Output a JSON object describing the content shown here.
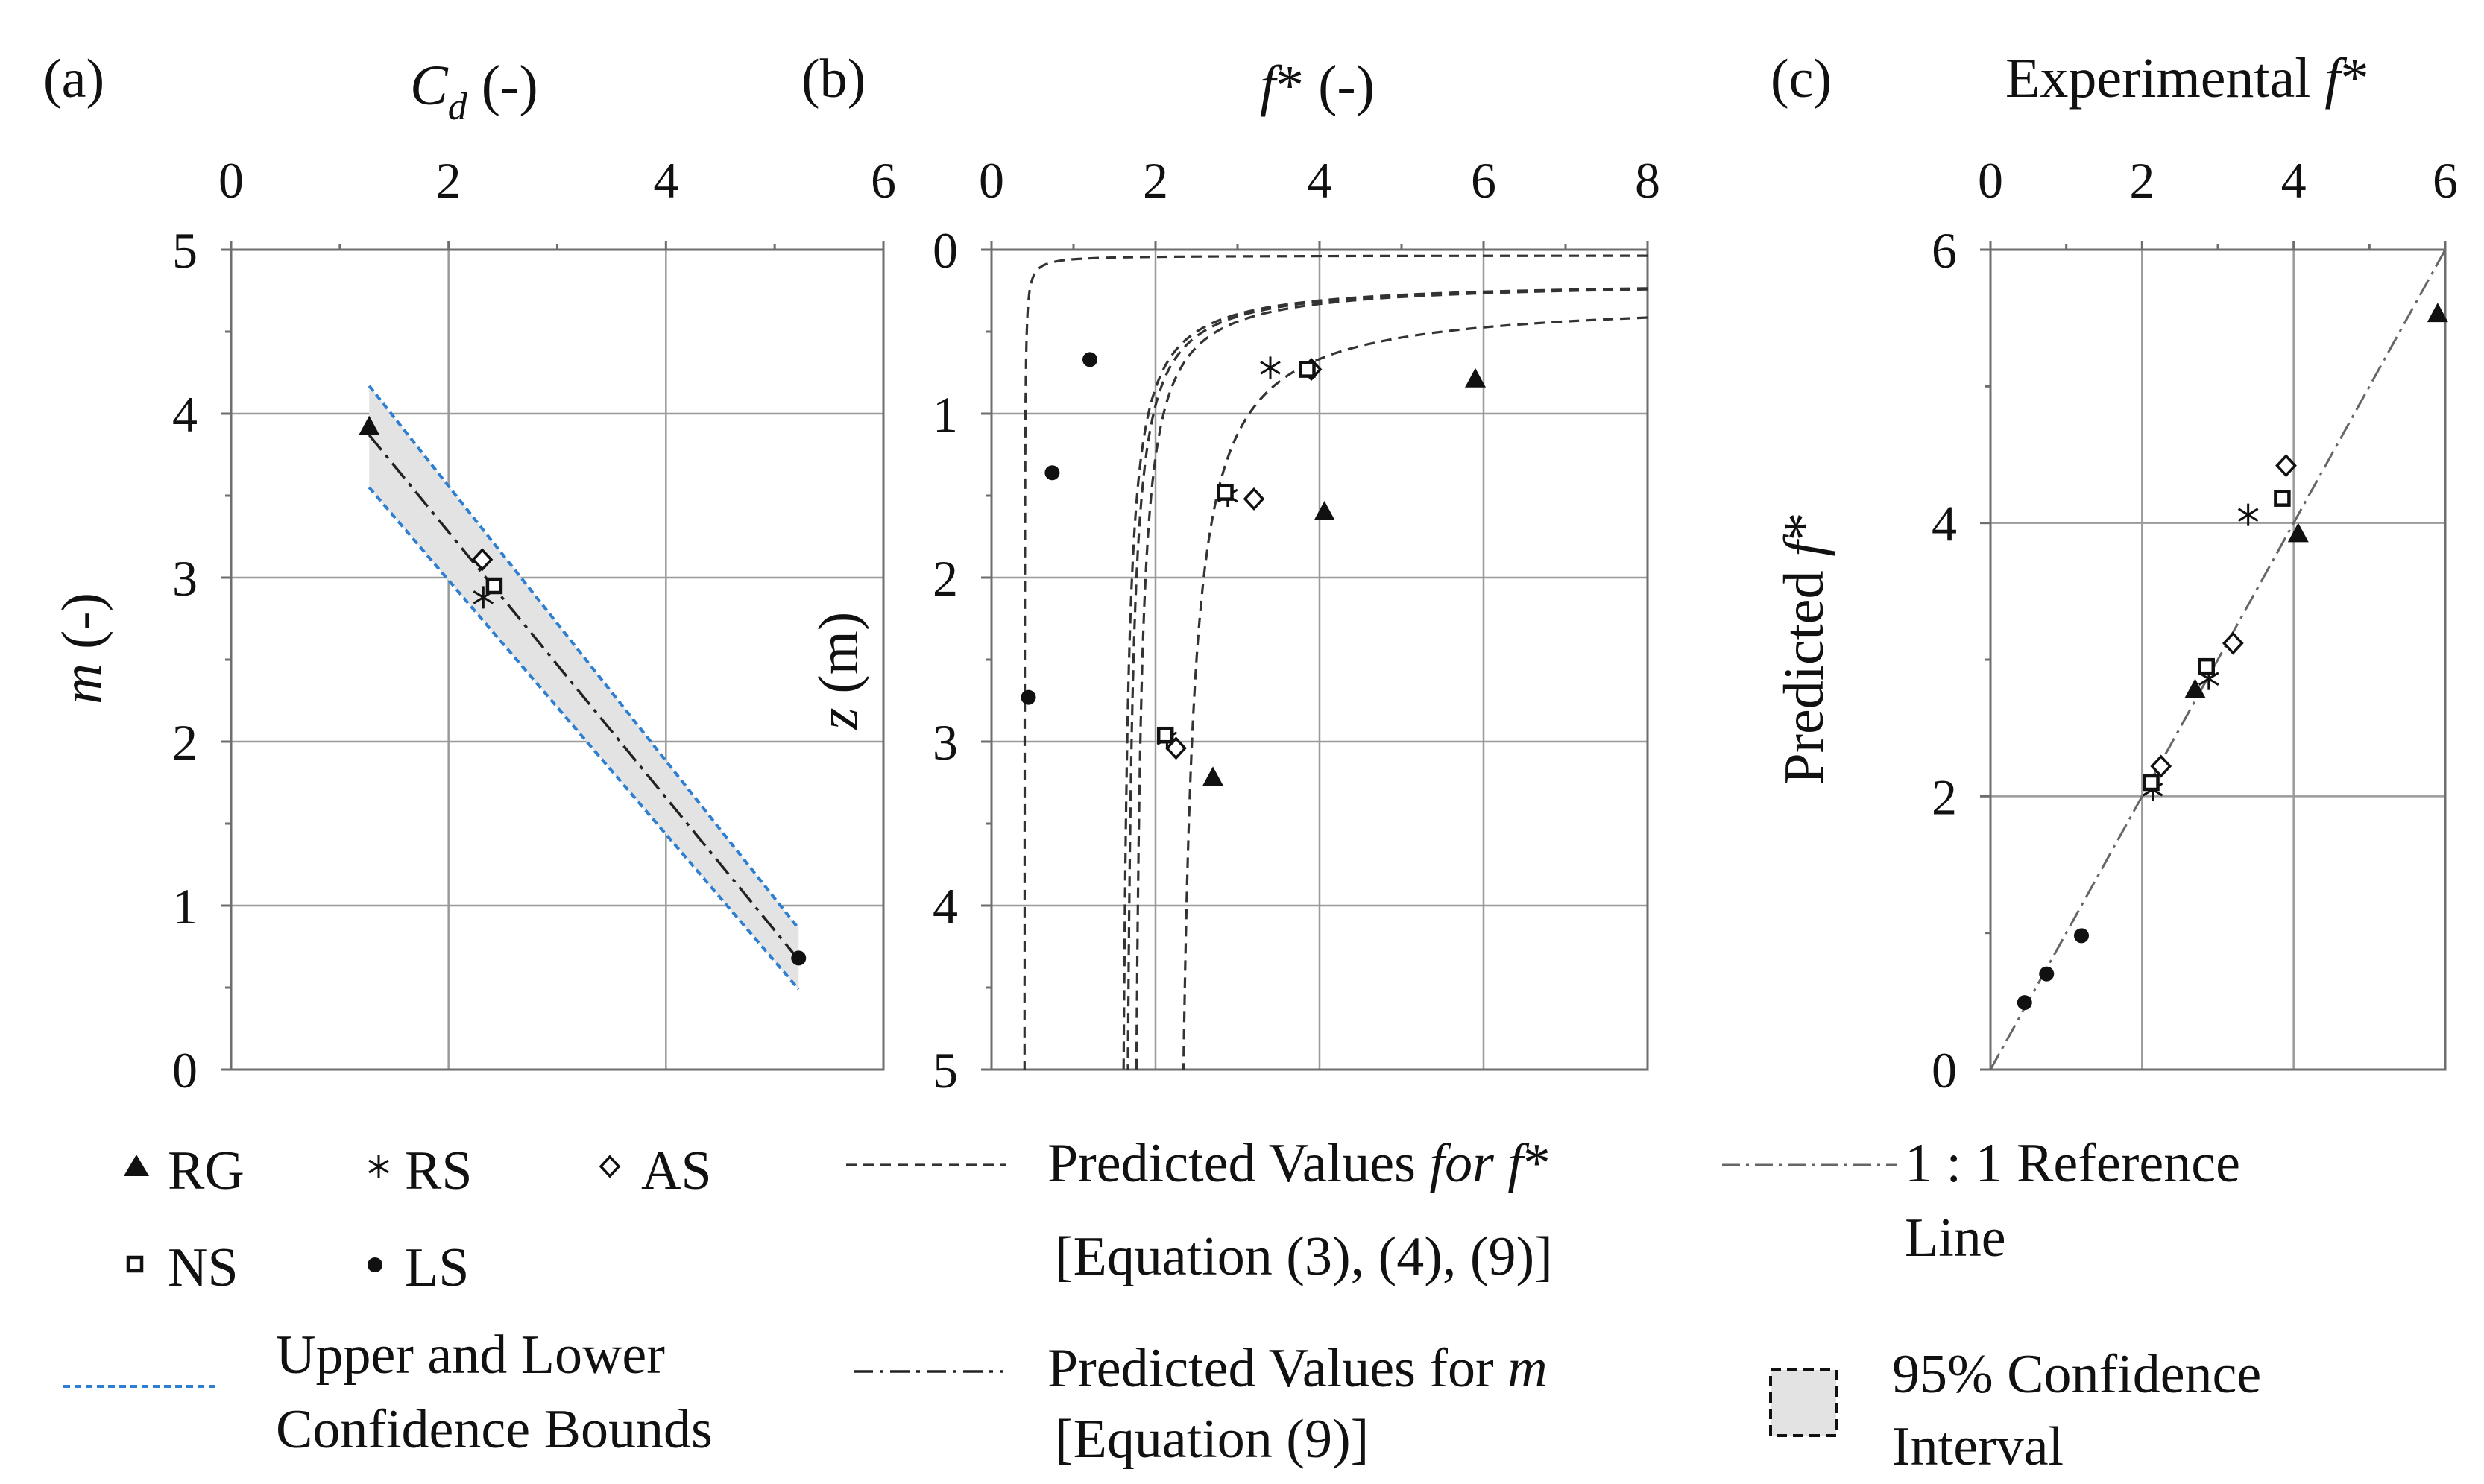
{
  "chart_data": [
    {
      "panel": "(a)",
      "type": "scatter",
      "xlabel": "C_d (-)",
      "ylabel": "m (-)",
      "xlim": [
        0,
        6
      ],
      "ylim": [
        0,
        5
      ],
      "xticks": [
        "0",
        "2",
        "4",
        "6"
      ],
      "yticks": [
        "0",
        "1",
        "2",
        "3",
        "4",
        "5"
      ],
      "axis_position": "x-axis on top",
      "grid": true,
      "series": [
        {
          "name": "RG",
          "marker": "triangle",
          "points": [
            [
              1.27,
              3.92
            ]
          ]
        },
        {
          "name": "RS",
          "marker": "asterisk",
          "points": [
            [
              2.32,
              2.88
            ]
          ]
        },
        {
          "name": "AS",
          "marker": "diamond",
          "points": [
            [
              2.31,
              3.11
            ]
          ]
        },
        {
          "name": "NS",
          "marker": "square",
          "points": [
            [
              2.42,
              2.95
            ]
          ]
        },
        {
          "name": "LS",
          "marker": "dot",
          "points": [
            [
              5.22,
              0.68
            ]
          ]
        }
      ],
      "fit_line": [
        [
          1.27,
          3.87
        ],
        [
          5.22,
          0.67
        ]
      ],
      "confidence_bounds": {
        "upper": [
          [
            1.27,
            4.17
          ],
          [
            5.22,
            0.86
          ]
        ],
        "lower": [
          [
            1.27,
            3.55
          ],
          [
            5.22,
            0.49
          ]
        ]
      }
    },
    {
      "panel": "(b)",
      "type": "scatter",
      "xlabel": "f* (-)",
      "ylabel": "z (m)",
      "xlim": [
        0,
        8
      ],
      "ylim": [
        0,
        5
      ],
      "y_inverted": true,
      "xticks": [
        "0",
        "2",
        "4",
        "6",
        "8"
      ],
      "yticks": [
        "0",
        "1",
        "2",
        "3",
        "4",
        "5"
      ],
      "axis_position": "x-axis on top",
      "grid": true,
      "series": [
        {
          "name": "RG",
          "marker": "triangle",
          "points": [
            [
              5.9,
              0.79
            ],
            [
              4.06,
              1.6
            ],
            [
              2.7,
              3.22
            ]
          ]
        },
        {
          "name": "RS",
          "marker": "asterisk",
          "points": [
            [
              3.4,
              0.72
            ],
            [
              2.88,
              1.5
            ],
            [
              2.14,
              2.98
            ]
          ]
        },
        {
          "name": "AS",
          "marker": "diamond",
          "points": [
            [
              3.9,
              0.73
            ],
            [
              3.2,
              1.52
            ],
            [
              2.25,
              3.04
            ]
          ]
        },
        {
          "name": "NS",
          "marker": "square",
          "points": [
            [
              3.85,
              0.73
            ],
            [
              2.85,
              1.48
            ],
            [
              2.12,
              2.96
            ]
          ]
        },
        {
          "name": "LS",
          "marker": "dot",
          "points": [
            [
              1.2,
              0.67
            ],
            [
              0.74,
              1.36
            ],
            [
              0.45,
              2.73
            ]
          ]
        }
      ],
      "predicted_curves": [
        {
          "group": "LS",
          "a": 0.4,
          "b": 0.035
        },
        {
          "group": "RS",
          "a": 1.55,
          "b": 0.19
        },
        {
          "group": "NS",
          "a": 1.6,
          "b": 0.19
        },
        {
          "group": "AS",
          "a": 1.7,
          "b": 0.19
        },
        {
          "group": "RG",
          "a": 2.2,
          "b": 0.3
        }
      ]
    },
    {
      "panel": "(c)",
      "type": "scatter",
      "xlabel": "Experimental f*",
      "ylabel": "Predicted f*",
      "xlim": [
        0,
        6
      ],
      "ylim": [
        0,
        6
      ],
      "xticks": [
        "0",
        "2",
        "4",
        "6"
      ],
      "yticks": [
        "0",
        "2",
        "4",
        "6"
      ],
      "axis_position": "x-axis on top",
      "grid": true,
      "series": [
        {
          "name": "RG",
          "marker": "triangle",
          "points": [
            [
              5.9,
              5.53
            ],
            [
              4.06,
              3.92
            ],
            [
              2.7,
              2.78
            ]
          ]
        },
        {
          "name": "RS",
          "marker": "asterisk",
          "points": [
            [
              3.4,
              4.06
            ],
            [
              2.88,
              2.86
            ],
            [
              2.14,
              2.05
            ]
          ]
        },
        {
          "name": "AS",
          "marker": "diamond",
          "points": [
            [
              3.9,
              4.42
            ],
            [
              3.2,
              3.12
            ],
            [
              2.25,
              2.22
            ]
          ]
        },
        {
          "name": "NS",
          "marker": "square",
          "points": [
            [
              3.85,
              4.18
            ],
            [
              2.85,
              2.95
            ],
            [
              2.12,
              2.1
            ]
          ]
        },
        {
          "name": "LS",
          "marker": "dot",
          "points": [
            [
              1.2,
              0.98
            ],
            [
              0.74,
              0.7
            ],
            [
              0.45,
              0.49
            ]
          ]
        }
      ],
      "reference_line": [
        [
          0,
          0
        ],
        [
          6,
          6
        ]
      ]
    }
  ],
  "panels": {
    "a": {
      "tag": "(a)",
      "xlabel_main": "C",
      "xlabel_sub": "d",
      "xlabel_rest": " (-)",
      "ylabel_main": "m",
      "ylabel_rest": " (-)"
    },
    "b": {
      "tag": "(b)",
      "xlabel_main": "f",
      "xlabel_rest": "* (-)",
      "ylabel_main": "z",
      "ylabel_rest": " (m)"
    },
    "c": {
      "tag": "(c)",
      "xlabel_plain": "Experimental ",
      "xlabel_italic": "f",
      "xlabel_star": "*",
      "ylabel_plain": "Predicted ",
      "ylabel_italic": "f",
      "ylabel_star": "*"
    }
  },
  "legend": {
    "rg": "RG",
    "rs": "RS",
    "as": "AS",
    "ns": "NS",
    "ls": "LS",
    "bounds_1": "Upper and Lower",
    "bounds_2": "Confidence Bounds",
    "pred_f_1a": "Predicted Values ",
    "pred_f_1b": "for f",
    "pred_f_1c": "*",
    "pred_f_2": "[Equation (3), (4), (9)]",
    "pred_m_1a": "Predicted Values for ",
    "pred_m_1b": "m",
    "pred_m_2": "[Equation (9)]",
    "ref_1": "1 : 1 Reference",
    "ref_2": "Line",
    "ci_1": "95% Confidence",
    "ci_2": "Interval"
  },
  "colors": {
    "bounds": "#2e7fd1",
    "ci_fill": "#e3e3e3",
    "marker": "#111111",
    "grid": "#9a9a9a"
  }
}
